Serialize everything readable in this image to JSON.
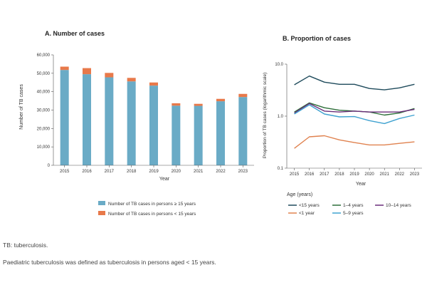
{
  "colors": {
    "adult": "#6aabc6",
    "child": "#e8794a",
    "lt15": "#1f4b5c",
    "age1_4": "#2e6f3a",
    "age10_14": "#6a2e7a",
    "lt1": "#e0824f",
    "age5_9": "#3fa2d0",
    "axis": "#555555"
  },
  "chart_data": [
    {
      "type": "bar",
      "stacked": true,
      "title": "A. Number of cases",
      "xlabel": "Year",
      "ylabel": "Number of TB cases",
      "ylim": [
        0,
        60000
      ],
      "yticks": [
        "0",
        "10,000",
        "20,000",
        "30,000",
        "40,000",
        "50,000",
        "60,000"
      ],
      "categories": [
        "2015",
        "2016",
        "2017",
        "2018",
        "2019",
        "2020",
        "2021",
        "2022",
        "2023"
      ],
      "series": [
        {
          "name": "Number of TB cases in persons ≥ 15 years",
          "values": [
            51800,
            49500,
            47800,
            45600,
            43300,
            32400,
            32300,
            34800,
            37100
          ]
        },
        {
          "name": "Number of TB cases in persons < 15 years",
          "values": [
            1800,
            3300,
            2400,
            1900,
            1700,
            1300,
            1100,
            1300,
            1700
          ]
        }
      ],
      "legend_position": "bottom"
    },
    {
      "type": "line",
      "title": "B. Proportion of cases",
      "xlabel": "Year",
      "ylabel": "Proportion of TB cases (logarithmic scale)",
      "yscale": "log",
      "ylim": [
        0.1,
        10
      ],
      "yticks": [
        "0.1",
        "1.0",
        "10.0"
      ],
      "categories": [
        "2015",
        "2016",
        "2017",
        "2018",
        "2019",
        "2020",
        "2021",
        "2022",
        "2023"
      ],
      "legend_title": "Age (years)",
      "series": [
        {
          "name": "<15 years",
          "values": [
            4.0,
            5.9,
            4.5,
            4.1,
            4.1,
            3.4,
            3.2,
            3.5,
            4.1
          ]
        },
        {
          "name": "1–4 years",
          "values": [
            1.2,
            1.8,
            1.45,
            1.3,
            1.25,
            1.2,
            1.05,
            1.15,
            1.4
          ]
        },
        {
          "name": "10–14 years",
          "values": [
            1.15,
            1.75,
            1.25,
            1.2,
            1.25,
            1.2,
            1.2,
            1.2,
            1.35
          ]
        },
        {
          "name": "<1 year",
          "values": [
            0.24,
            0.4,
            0.42,
            0.35,
            0.31,
            0.28,
            0.28,
            0.3,
            0.32
          ]
        },
        {
          "name": "5–9 years",
          "values": [
            1.1,
            1.65,
            1.1,
            0.97,
            0.98,
            0.82,
            0.72,
            0.9,
            1.05
          ]
        }
      ],
      "legend_position": "bottom"
    }
  ],
  "footnotes": {
    "abbrev": "TB: tuberculosis.",
    "definition": "Paediatric tuberculosis was defined as tuberculosis in persons aged < 15 years."
  }
}
